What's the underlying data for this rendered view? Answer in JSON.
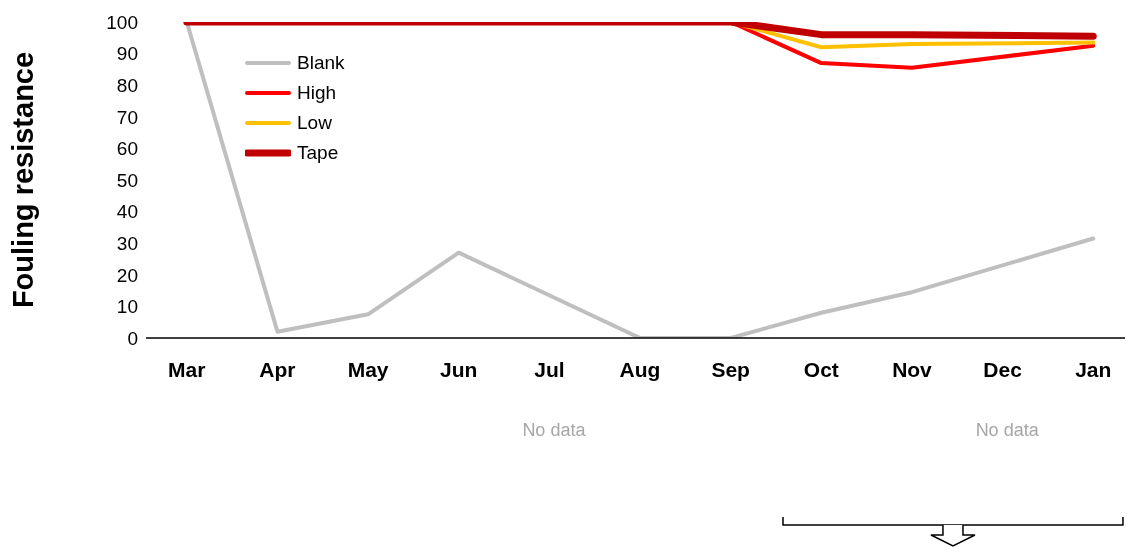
{
  "chart_data": {
    "type": "line",
    "ylabel": "Fouling resistance",
    "categories": [
      "Mar",
      "Apr",
      "May",
      "Jun",
      "Jul",
      "Aug",
      "Sep",
      "Oct",
      "Nov",
      "Dec",
      "Jan"
    ],
    "series": [
      {
        "name": "Blank",
        "color": "#bfbfbf",
        "values": [
          100,
          2,
          7.5,
          27,
          null,
          0,
          0,
          8,
          14.5,
          null,
          31.5
        ]
      },
      {
        "name": "High",
        "color": "#ff0000",
        "values": [
          null,
          null,
          null,
          null,
          null,
          null,
          100,
          87,
          85.5,
          null,
          92.5
        ]
      },
      {
        "name": "Low",
        "color": "#ffc000",
        "values": [
          null,
          null,
          null,
          null,
          null,
          null,
          100,
          92,
          93,
          null,
          93.5
        ]
      },
      {
        "name": "Tape",
        "color": "#c00000",
        "values": [
          100,
          100,
          100,
          100,
          null,
          100,
          100,
          96,
          96,
          null,
          95.5
        ]
      }
    ],
    "ylim": [
      0,
      100
    ],
    "yticks": [
      0,
      10,
      20,
      30,
      40,
      50,
      60,
      70,
      80,
      90,
      100
    ],
    "annotations": [
      "No data",
      "No data"
    ],
    "legend": "top left",
    "marker": "none",
    "line_style": "solid",
    "grid": false
  }
}
